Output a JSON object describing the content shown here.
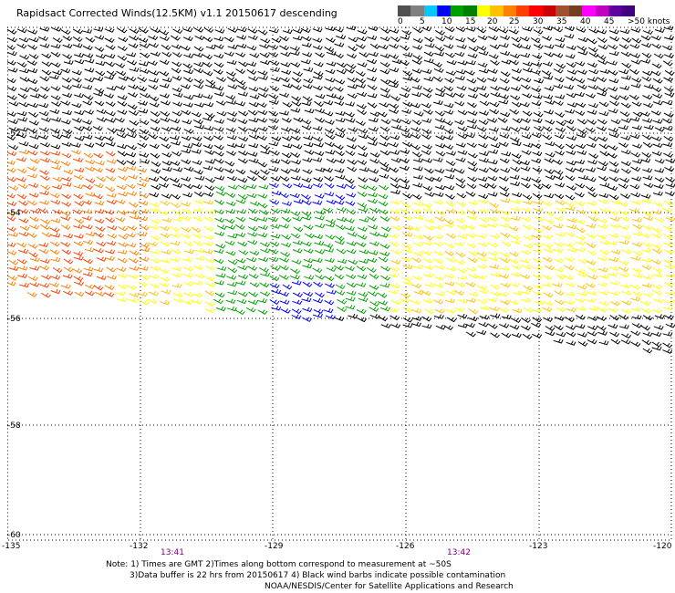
{
  "title": "Rapidsact Corrected Winds(12.5KM) v1.1 20150617 descending",
  "colorbar": {
    "colors": [
      "#505050",
      "#808080",
      "#00c8ff",
      "#0000ff",
      "#00a000",
      "#008000",
      "#ffff00",
      "#ffc000",
      "#ff8000",
      "#ff4000",
      "#ff0000",
      "#cc0000",
      "#a05030",
      "#704020",
      "#ff00ff",
      "#c000c0",
      "#6000a0",
      "#400080"
    ],
    "labels": [
      "0",
      "5",
      "10",
      "15",
      "20",
      "25",
      "30",
      "35",
      "40",
      "45",
      ">50 knots"
    ]
  },
  "axes": {
    "lat_labels": [
      "-52",
      "-54",
      "-56",
      "-58",
      "-60"
    ],
    "lon_labels": [
      "-135",
      "-132",
      "-129",
      "-126",
      "-123",
      "-120"
    ],
    "times": [
      "13:41",
      "13:42"
    ]
  },
  "notes": [
    "Note: 1) Times are GMT 2)Times along bottom correspond to measurement at ~50S",
    "3)Data buffer is 22 hrs from 20150617 4) Black wind barbs indicate possible contamination",
    "NOAA/NESDIS/Center for Satellite Applications and Research"
  ]
}
